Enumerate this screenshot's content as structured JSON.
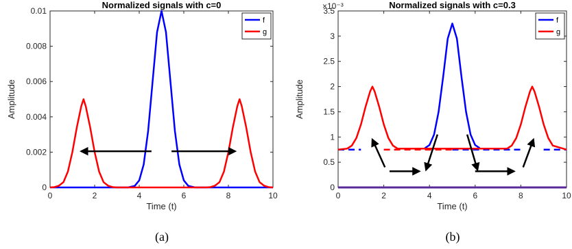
{
  "chart_data": [
    {
      "type": "line",
      "title": "Normalized signals with c=0",
      "xlabel": "Time (t)",
      "ylabel": "Amplitude",
      "xlim": [
        0,
        10
      ],
      "ylim": [
        0,
        0.01
      ],
      "xticks": [
        0,
        2,
        4,
        6,
        8,
        10
      ],
      "xtick_labels": [
        "0",
        "2",
        "4",
        "6",
        "8",
        "10"
      ],
      "yticks": [
        0,
        0.002,
        0.004,
        0.006,
        0.008,
        0.01
      ],
      "ytick_labels": [
        "0",
        "0.002",
        "0.004",
        "0.006",
        "0.008",
        "0.01"
      ],
      "exponent_label": "",
      "legend": {
        "position": "top-right",
        "entries": [
          {
            "name": "f",
            "color": "#0000ff"
          },
          {
            "name": "g",
            "color": "#ff0000"
          }
        ]
      },
      "series": [
        {
          "name": "f",
          "color": "#0000ff",
          "x": [
            0,
            3.5,
            3.8,
            4.0,
            4.2,
            4.4,
            4.6,
            4.8,
            5.0,
            5.2,
            5.4,
            5.6,
            5.8,
            6.0,
            6.2,
            6.5,
            10
          ],
          "y": [
            0,
            0,
            9e-05,
            0.0004,
            0.0013,
            0.0032,
            0.006,
            0.0088,
            0.01,
            0.0088,
            0.006,
            0.0032,
            0.0013,
            0.0004,
            9e-05,
            0,
            0
          ]
        },
        {
          "name": "g",
          "color": "#ff0000",
          "x": [
            0,
            0.2,
            0.4,
            0.6,
            0.8,
            1.0,
            1.2,
            1.4,
            1.5,
            1.6,
            1.8,
            2.0,
            2.2,
            2.4,
            2.6,
            2.8,
            3.0,
            3.5,
            6.5,
            7.0,
            7.2,
            7.4,
            7.6,
            7.8,
            8.0,
            8.2,
            8.4,
            8.5,
            8.6,
            8.8,
            9.0,
            9.2,
            9.4,
            9.6,
            9.8,
            10
          ],
          "y": [
            0,
            2e-05,
            0.0001,
            0.0003,
            0.0009,
            0.002,
            0.0034,
            0.0046,
            0.005,
            0.0046,
            0.0034,
            0.002,
            0.0009,
            0.0003,
            0.0001,
            2e-05,
            0,
            0,
            0,
            0,
            2e-05,
            0.0001,
            0.0003,
            0.0009,
            0.002,
            0.0034,
            0.0046,
            0.005,
            0.0046,
            0.0034,
            0.002,
            0.0009,
            0.0003,
            0.0001,
            2e-05,
            0
          ]
        }
      ],
      "annotations": [
        {
          "type": "arrow",
          "from": [
            4.55,
            0.00205
          ],
          "to": [
            1.4,
            0.00205
          ]
        },
        {
          "type": "arrow",
          "from": [
            5.45,
            0.00205
          ],
          "to": [
            8.3,
            0.00205
          ]
        }
      ],
      "caption": "(a)"
    },
    {
      "type": "line",
      "title": "Normalized signals with c=0.3",
      "xlabel": "Time (t)",
      "ylabel": "Amplitude",
      "xlim": [
        0,
        10
      ],
      "ylim": [
        0,
        3.5
      ],
      "xticks": [
        0,
        2,
        4,
        6,
        8,
        10
      ],
      "xtick_labels": [
        "0",
        "2",
        "4",
        "6",
        "8",
        "10"
      ],
      "yticks": [
        0,
        0.5,
        1,
        1.5,
        2,
        2.5,
        3,
        3.5
      ],
      "ytick_labels": [
        "0",
        "0.5",
        "1",
        "1.5",
        "2",
        "2.5",
        "3",
        "3.5"
      ],
      "exponent_label": "×10⁻³",
      "legend": {
        "position": "top-right",
        "entries": [
          {
            "name": "f",
            "color": "#0000ff"
          },
          {
            "name": "g",
            "color": "#ff0000"
          }
        ]
      },
      "baselines": [
        {
          "y": 0.75,
          "style": "dashed",
          "segments": [
            {
              "x": [
                0,
                1.0
              ],
              "color": "#0000ff"
            },
            {
              "x": [
                2.0,
                5.0
              ],
              "color": "#ff0000"
            },
            {
              "x": [
                5.0,
                8.0
              ],
              "color": "#0000ff"
            },
            {
              "x": [
                9.0,
                10
              ],
              "color": "#0000ff"
            }
          ]
        },
        {
          "y": 0.0,
          "style": "solid",
          "color": "#5a2a9a"
        }
      ],
      "series": [
        {
          "name": "f",
          "color": "#0000ff",
          "x": [
            3.8,
            4.0,
            4.2,
            4.4,
            4.6,
            4.8,
            5.0,
            5.2,
            5.4,
            5.6,
            5.8,
            6.0,
            6.2
          ],
          "y": [
            0.78,
            0.84,
            1.05,
            1.5,
            2.2,
            2.95,
            3.25,
            2.95,
            2.2,
            1.5,
            1.05,
            0.84,
            0.78
          ]
        },
        {
          "name": "g",
          "color": "#ff0000",
          "x": [
            0,
            0.4,
            0.6,
            0.8,
            1.0,
            1.2,
            1.4,
            1.5,
            1.6,
            1.8,
            2.0,
            2.2,
            2.4,
            2.6,
            7.4,
            7.6,
            7.8,
            8.0,
            8.2,
            8.4,
            8.5,
            8.6,
            8.8,
            9.0,
            9.2,
            9.4,
            10
          ],
          "y": [
            0.75,
            0.77,
            0.83,
            0.98,
            1.25,
            1.6,
            1.9,
            2.0,
            1.9,
            1.6,
            1.25,
            0.98,
            0.83,
            0.77,
            0.77,
            0.83,
            0.98,
            1.25,
            1.6,
            1.9,
            2.0,
            1.9,
            1.6,
            1.25,
            0.98,
            0.83,
            0.75
          ]
        }
      ],
      "annotations": [
        {
          "type": "arrow",
          "from": [
            2.05,
            0.4
          ],
          "to": [
            1.5,
            0.95
          ]
        },
        {
          "type": "arrow",
          "from": [
            2.25,
            0.32
          ],
          "to": [
            3.55,
            0.32
          ]
        },
        {
          "type": "arrow",
          "from": [
            4.35,
            1.05
          ],
          "to": [
            3.85,
            0.35
          ]
        },
        {
          "type": "arrow",
          "from": [
            5.65,
            1.05
          ],
          "to": [
            6.1,
            0.35
          ]
        },
        {
          "type": "arrow",
          "from": [
            6.0,
            0.32
          ],
          "to": [
            7.7,
            0.32
          ]
        },
        {
          "type": "arrow",
          "from": [
            8.1,
            0.4
          ],
          "to": [
            8.55,
            0.95
          ]
        }
      ],
      "caption": "(b)"
    }
  ]
}
